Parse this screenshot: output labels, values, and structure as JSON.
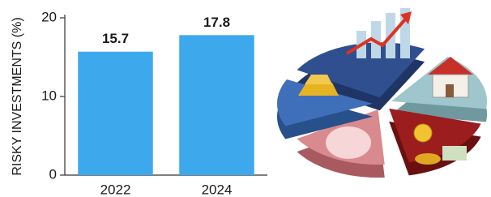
{
  "chart_data": {
    "type": "bar",
    "y_label": "RISKY INVESTMENTS (%)",
    "categories": [
      "2022",
      "2024"
    ],
    "values": [
      15.7,
      17.8
    ],
    "color": "#3ea8ec",
    "ylim": [
      0,
      20
    ],
    "yticks": [
      0,
      10,
      20
    ]
  }
}
